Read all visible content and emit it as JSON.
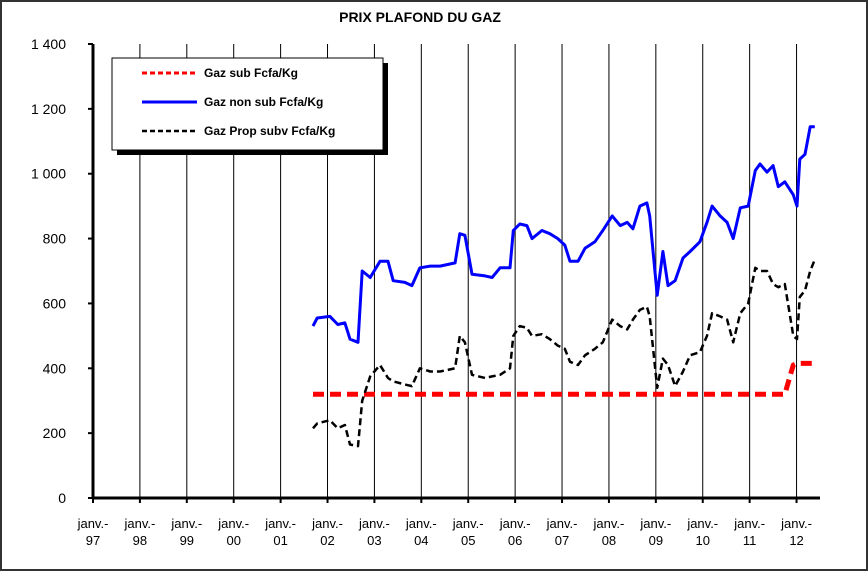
{
  "chart_data": {
    "type": "line",
    "title": "PRIX PLAFOND DU GAZ",
    "xlim": [
      1997,
      2012.5
    ],
    "xticks": [
      {
        "value": 1997,
        "label": "janv.-97"
      },
      {
        "value": 1998,
        "label": "janv.-98"
      },
      {
        "value": 1999,
        "label": "janv.-99"
      },
      {
        "value": 2000,
        "label": "janv.-00"
      },
      {
        "value": 2001,
        "label": "janv.-01"
      },
      {
        "value": 2002,
        "label": "janv.-02"
      },
      {
        "value": 2003,
        "label": "janv.-03"
      },
      {
        "value": 2004,
        "label": "janv.-04"
      },
      {
        "value": 2005,
        "label": "janv.-05"
      },
      {
        "value": 2006,
        "label": "janv.-06"
      },
      {
        "value": 2007,
        "label": "janv.-07"
      },
      {
        "value": 2008,
        "label": "janv.-08"
      },
      {
        "value": 2009,
        "label": "janv.-09"
      },
      {
        "value": 2010,
        "label": "janv.-10"
      },
      {
        "value": 2011,
        "label": "janv.-11"
      },
      {
        "value": 2012,
        "label": "janv.-12"
      }
    ],
    "ylim": [
      0,
      1400
    ],
    "yticks": [
      0,
      200,
      400,
      600,
      800,
      {
        "value": 1000,
        "label": "1 000"
      },
      {
        "value": 1200,
        "label": "1 200"
      },
      {
        "value": 1400,
        "label": "1 400"
      }
    ],
    "grid": "x",
    "legend": "top-left",
    "x": [
      2001.69,
      2001.78,
      2002.05,
      2002.22,
      2002.37,
      2002.48,
      2002.65,
      2002.74,
      2002.91,
      2003.12,
      2003.29,
      2003.4,
      2003.65,
      2003.8,
      2003.97,
      2004.19,
      2004.4,
      2004.72,
      2004.82,
      2004.93,
      2005.08,
      2005.36,
      2005.51,
      2005.68,
      2005.89,
      2005.96,
      2006.1,
      2006.25,
      2006.36,
      2006.57,
      2006.74,
      2006.91,
      2007.06,
      2007.17,
      2007.34,
      2007.49,
      2007.7,
      2007.87,
      2008.07,
      2008.24,
      2008.39,
      2008.51,
      2008.66,
      2008.81,
      2008.87,
      2009.03,
      2009.15,
      2009.26,
      2009.41,
      2009.58,
      2009.73,
      2009.94,
      2010.09,
      2010.2,
      2010.37,
      2010.52,
      2010.65,
      2010.8,
      2010.97,
      2011.12,
      2011.22,
      2011.37,
      2011.5,
      2011.61,
      2011.75,
      2011.93,
      2012.01,
      2012.07,
      2012.18,
      2012.29,
      2012.39
    ],
    "series": [
      {
        "name": "Gaz sub Fcfa/Kg",
        "color": "#ff0000",
        "dash": "dashed",
        "values": [
          320,
          320,
          320,
          320,
          320,
          320,
          320,
          320,
          320,
          320,
          320,
          320,
          320,
          320,
          320,
          320,
          320,
          320,
          320,
          320,
          320,
          320,
          320,
          320,
          320,
          320,
          320,
          320,
          320,
          320,
          320,
          320,
          320,
          320,
          320,
          320,
          320,
          320,
          320,
          320,
          320,
          320,
          320,
          320,
          320,
          320,
          320,
          320,
          320,
          320,
          320,
          320,
          320,
          320,
          320,
          320,
          320,
          320,
          320,
          320,
          320,
          320,
          320,
          320,
          320,
          410,
          415,
          415,
          415,
          415,
          415
        ]
      },
      {
        "name": "Gaz non sub Fcfa/Kg",
        "color": "#0000ff",
        "dash": "solid",
        "values": [
          530,
          555,
          560,
          535,
          540,
          490,
          480,
          700,
          680,
          730,
          730,
          670,
          665,
          655,
          710,
          715,
          715,
          725,
          815,
          810,
          690,
          685,
          680,
          710,
          710,
          825,
          845,
          840,
          800,
          825,
          815,
          800,
          780,
          730,
          730,
          770,
          790,
          825,
          870,
          840,
          850,
          830,
          900,
          910,
          870,
          625,
          760,
          655,
          670,
          740,
          760,
          790,
          850,
          900,
          870,
          850,
          800,
          895,
          900,
          1010,
          1030,
          1005,
          1025,
          960,
          975,
          935,
          900,
          1045,
          1060,
          1145,
          1145
        ]
      },
      {
        "name": "Gaz Prop subv Fcfa/Kg",
        "color": "#000000",
        "dash": "dashed",
        "values": [
          215,
          230,
          240,
          215,
          225,
          165,
          160,
          300,
          375,
          410,
          370,
          360,
          350,
          345,
          400,
          390,
          390,
          400,
          500,
          480,
          380,
          370,
          375,
          380,
          400,
          500,
          530,
          525,
          500,
          505,
          490,
          470,
          460,
          420,
          410,
          440,
          460,
          480,
          550,
          530,
          520,
          550,
          580,
          590,
          560,
          340,
          430,
          410,
          345,
          390,
          440,
          450,
          500,
          570,
          560,
          550,
          480,
          570,
          600,
          710,
          700,
          700,
          660,
          650,
          660,
          500,
          490,
          620,
          640,
          700,
          735
        ]
      }
    ]
  }
}
